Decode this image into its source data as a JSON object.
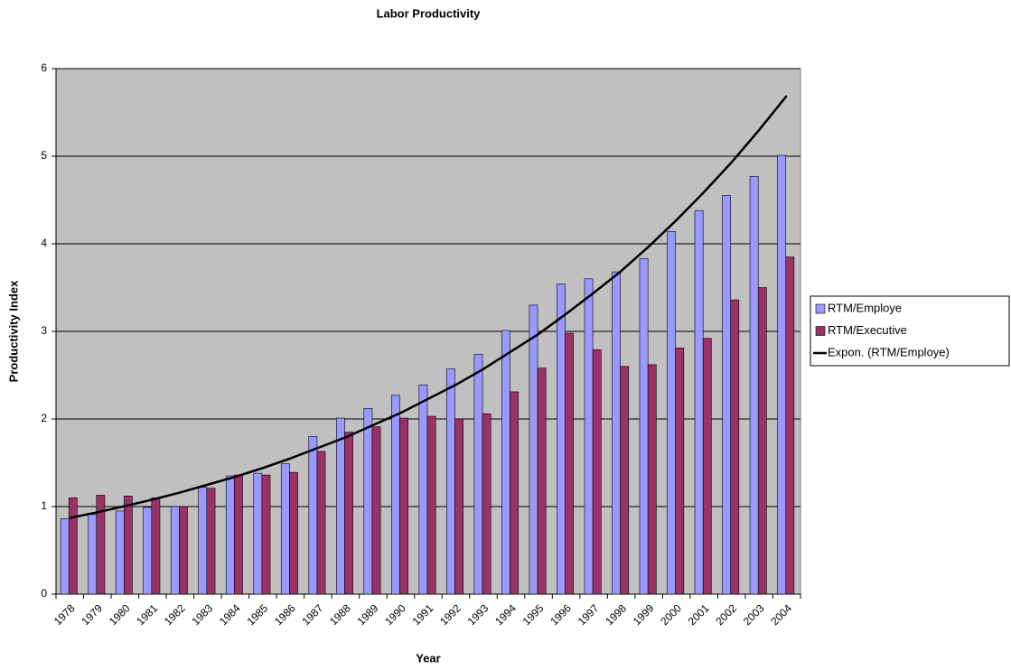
{
  "chart_data": {
    "type": "bar",
    "title": "Labor Productivity",
    "x_label": "Year",
    "y_label": "Productivity Index",
    "categories": [
      "1978",
      "1979",
      "1980",
      "1981",
      "1982",
      "1983",
      "1984",
      "1985",
      "1986",
      "1987",
      "1988",
      "1989",
      "1990",
      "1991",
      "1992",
      "1993",
      "1994",
      "1995",
      "1996",
      "1997",
      "1998",
      "1999",
      "2000",
      "2001",
      "2002",
      "2003",
      "2004"
    ],
    "series": [
      {
        "name": "RTM/Employe",
        "type": "bar",
        "color": "#9999ff",
        "values": [
          0.86,
          0.91,
          0.95,
          0.99,
          1.0,
          1.22,
          1.35,
          1.38,
          1.49,
          1.8,
          2.01,
          2.12,
          2.27,
          2.39,
          2.57,
          2.74,
          3.01,
          3.3,
          3.54,
          3.6,
          3.68,
          3.83,
          4.14,
          4.38,
          4.55,
          4.77,
          5.01
        ]
      },
      {
        "name": "RTM/Executive",
        "type": "bar",
        "color": "#993366",
        "values": [
          1.1,
          1.13,
          1.12,
          1.1,
          1.0,
          1.21,
          1.36,
          1.36,
          1.39,
          1.63,
          1.85,
          1.91,
          2.01,
          2.03,
          2.0,
          2.06,
          2.31,
          2.58,
          2.98,
          2.79,
          2.6,
          2.62,
          2.81,
          2.92,
          3.36,
          3.5,
          3.85
        ]
      },
      {
        "name": "Expon. (RTM/Employe)",
        "type": "line",
        "color": "#000000",
        "values": [
          0.87,
          0.935,
          1.005,
          1.08,
          1.16,
          1.25,
          1.34,
          1.44,
          1.55,
          1.67,
          1.79,
          1.93,
          2.07,
          2.23,
          2.39,
          2.57,
          2.77,
          2.97,
          3.2,
          3.44,
          3.69,
          3.97,
          4.27,
          4.59,
          4.93,
          5.3,
          5.69
        ]
      }
    ],
    "ylim": [
      0,
      6
    ],
    "yticks": [
      0,
      1,
      2,
      3,
      4,
      5,
      6
    ],
    "grid": true,
    "legend": "right",
    "plot_background": "#c0c0c0"
  }
}
